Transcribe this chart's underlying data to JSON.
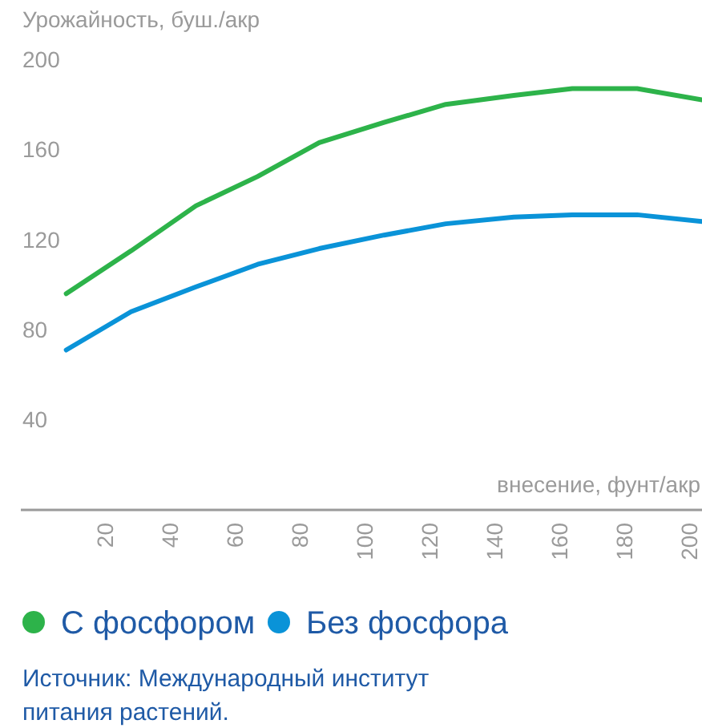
{
  "chart_data": {
    "type": "line",
    "ylabel": "Урожайность, буш./акр",
    "xlabel": "внесение, фунт/акр",
    "x": [
      8,
      28,
      48,
      67,
      86,
      106,
      125,
      146,
      164,
      184,
      204
    ],
    "series": [
      {
        "name": "С фосфором",
        "color": "#2db34a",
        "values": [
          96,
          115,
          135,
          148,
          163,
          172,
          180,
          184,
          187,
          187,
          182
        ]
      },
      {
        "name": "Без фосфора",
        "color": "#0a93d8",
        "values": [
          71,
          88,
          99,
          109,
          116,
          122,
          127,
          130,
          131,
          131,
          128
        ]
      }
    ],
    "xlim": [
      -6,
      204
    ],
    "xticks": [
      20,
      40,
      60,
      80,
      100,
      120,
      140,
      160,
      180,
      200
    ],
    "ylim": [
      0,
      200
    ],
    "yticks": [
      40,
      80,
      120,
      160,
      200
    ],
    "grid": false,
    "legend": "bottom",
    "marker": "none",
    "line_style": "solid",
    "annotations": [
      "Источник: Международный институт питания растений."
    ]
  }
}
